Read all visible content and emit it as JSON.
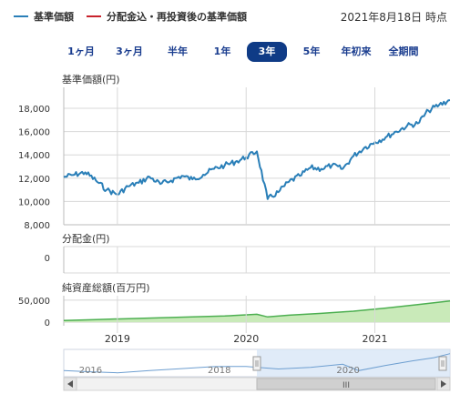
{
  "legend": {
    "items": [
      {
        "label": "基準価額",
        "color": "#2a7fb8"
      },
      {
        "label": "分配金込・再投資後の基準価額",
        "color": "#c8232c"
      }
    ]
  },
  "as_of": "2021年8月18日 時点",
  "tabs": [
    "1ヶ月",
    "3ヶ月",
    "半年",
    "1年",
    "3年",
    "5年",
    "年初来",
    "全期間"
  ],
  "active_tab": "3年",
  "chart_data": [
    {
      "type": "line",
      "title": "基準価額(円)",
      "series": [
        {
          "name": "基準価額",
          "color": "#2a7fb8"
        }
      ],
      "x": [
        "2018-08",
        "2018-09",
        "2018-10",
        "2018-11",
        "2018-12",
        "2019-01",
        "2019-02",
        "2019-03",
        "2019-04",
        "2019-05",
        "2019-06",
        "2019-07",
        "2019-08",
        "2019-09",
        "2019-10",
        "2019-11",
        "2019-12",
        "2020-01",
        "2020-02",
        "2020-03",
        "2020-04",
        "2020-05",
        "2020-06",
        "2020-07",
        "2020-08",
        "2020-09",
        "2020-10",
        "2020-11",
        "2020-12",
        "2021-01",
        "2021-02",
        "2021-03",
        "2021-04",
        "2021-05",
        "2021-06",
        "2021-07",
        "2021-08"
      ],
      "y": [
        12100,
        12300,
        12500,
        11800,
        11000,
        10600,
        11300,
        11600,
        12100,
        11500,
        11800,
        12200,
        11900,
        12300,
        12800,
        13100,
        13400,
        13800,
        14300,
        10200,
        10800,
        11700,
        12200,
        12900,
        12800,
        13100,
        12800,
        13900,
        14600,
        15100,
        15500,
        16000,
        16500,
        16700,
        17800,
        18300,
        18700
      ],
      "ylim": [
        8000,
        19800
      ],
      "yticks": [
        "8,000",
        "10,000",
        "12,000",
        "14,000",
        "16,000",
        "18,000"
      ],
      "ytick_values": [
        8000,
        10000,
        12000,
        14000,
        16000,
        18000
      ]
    },
    {
      "type": "line",
      "title": "分配金(円)",
      "series": [
        {
          "name": "分配金",
          "color": "#2a7fb8"
        }
      ],
      "yticks": [
        "0"
      ],
      "ylim": [
        0,
        1
      ]
    },
    {
      "type": "area",
      "title": "純資産総額(百万円)",
      "series": [
        {
          "name": "純資産総額",
          "color": "#4caf50"
        }
      ],
      "x": [
        "2018-08",
        "2018-11",
        "2019-02",
        "2019-05",
        "2019-08",
        "2019-11",
        "2020-02",
        "2020-03",
        "2020-05",
        "2020-08",
        "2020-11",
        "2021-02",
        "2021-05",
        "2021-08"
      ],
      "y": [
        4000,
        6000,
        8000,
        10000,
        12000,
        14000,
        18000,
        12000,
        16000,
        20000,
        25000,
        32000,
        40000,
        48000
      ],
      "ylim": [
        -8000,
        60000
      ],
      "yticks": [
        "50,000",
        "0"
      ],
      "ytick_values": [
        50000,
        0
      ]
    }
  ],
  "x_axis": {
    "labels": [
      "2019",
      "2020",
      "2021"
    ],
    "label_dates": [
      "2019-01",
      "2020-01",
      "2021-01"
    ]
  },
  "navigator": {
    "labels": [
      "2016",
      "2018",
      "2020"
    ],
    "label_dates": [
      "2016-01",
      "2018-01",
      "2020-01"
    ],
    "series": [
      {
        "x": "2015-08",
        "y": 10200
      },
      {
        "x": "2016-01",
        "y": 9600
      },
      {
        "x": "2016-06",
        "y": 9100
      },
      {
        "x": "2016-12",
        "y": 10200
      },
      {
        "x": "2017-06",
        "y": 11200
      },
      {
        "x": "2017-12",
        "y": 12200
      },
      {
        "x": "2018-06",
        "y": 12300
      },
      {
        "x": "2018-12",
        "y": 11000
      },
      {
        "x": "2019-06",
        "y": 11800
      },
      {
        "x": "2019-12",
        "y": 13400
      },
      {
        "x": "2020-03",
        "y": 10200
      },
      {
        "x": "2020-08",
        "y": 12800
      },
      {
        "x": "2021-01",
        "y": 15100
      },
      {
        "x": "2021-05",
        "y": 16700
      },
      {
        "x": "2021-08",
        "y": 18700
      }
    ],
    "selection_start": "2018-08",
    "selection_end": "2021-08",
    "scroll_left_icon": "triangle-left",
    "scroll_right_icon": "triangle-right",
    "scroll_grip_label": "III"
  },
  "colors": {
    "price_line": "#2a7fb8",
    "nav_area_fill": "#c9eab9",
    "nav_area_line": "#4caf50",
    "active_tab_bg": "#0f3b86",
    "selection_fill": "#d5e4f5",
    "grid": "#d8d8d8"
  }
}
